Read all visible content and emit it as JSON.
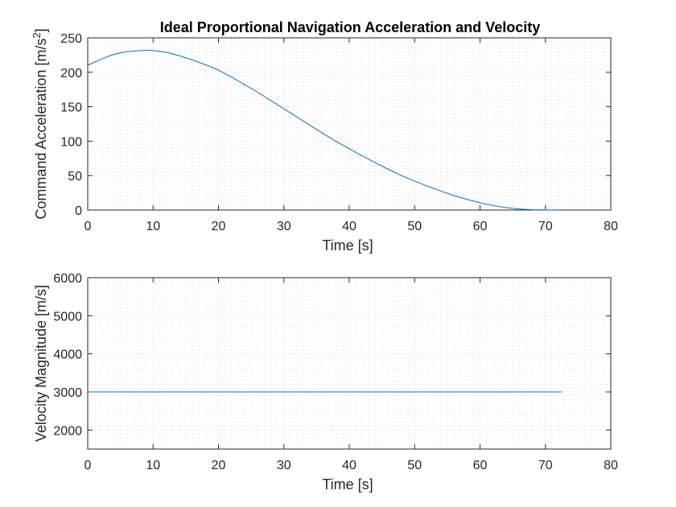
{
  "figure": {
    "title": "Ideal Proportional Navigation Acceleration and Velocity"
  },
  "chart_data": [
    {
      "type": "line",
      "title": "Ideal Proportional Navigation Acceleration and Velocity",
      "xlabel": "Time [s]",
      "ylabel_main": "Command Acceleration [m/s",
      "ylabel_sup": "2",
      "ylabel_end": "]",
      "xlim": [
        0,
        80
      ],
      "ylim": [
        0,
        250
      ],
      "xticks": [
        0,
        10,
        20,
        30,
        40,
        50,
        60,
        70,
        80
      ],
      "yticks": [
        0,
        50,
        100,
        150,
        200,
        250
      ],
      "grid": true,
      "minor_grid": true,
      "series_color": "#0072BD",
      "series": [
        {
          "x": [
            0,
            2,
            4,
            6,
            8,
            9.2,
            10,
            12,
            14,
            16,
            18,
            20,
            22,
            24,
            26,
            28,
            30,
            32,
            34,
            36,
            38,
            40,
            42,
            44,
            46,
            48,
            50,
            52,
            54,
            56,
            58,
            60,
            62,
            64,
            66,
            68,
            70,
            71,
            72.5
          ],
          "y": [
            210,
            219,
            226,
            230,
            231.5,
            232,
            231.5,
            229,
            224,
            218,
            211,
            203,
            193,
            182,
            171,
            159,
            147,
            135,
            123,
            111,
            99.5,
            89,
            78.5,
            68.5,
            59,
            50,
            42,
            34.5,
            27.5,
            21,
            15.5,
            10.5,
            6.5,
            3.5,
            1.5,
            0.5,
            0.1,
            0,
            0.3
          ]
        }
      ]
    },
    {
      "type": "line",
      "xlabel": "Time [s]",
      "ylabel": "Velocity Magnitude [m/s]",
      "xlim": [
        0,
        80
      ],
      "ylim": [
        1500,
        6000
      ],
      "xticks": [
        0,
        10,
        20,
        30,
        40,
        50,
        60,
        70,
        80
      ],
      "yticks": [
        2000,
        3000,
        4000,
        5000,
        6000
      ],
      "grid": true,
      "minor_grid": true,
      "series_color": "#0072BD",
      "series": [
        {
          "x": [
            0,
            72.5
          ],
          "y": [
            3000,
            3000
          ]
        }
      ]
    }
  ]
}
